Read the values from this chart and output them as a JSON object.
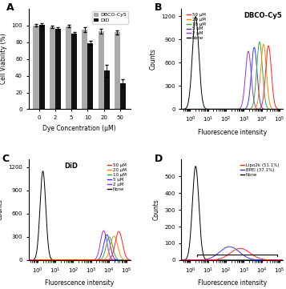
{
  "panel_A": {
    "categories": [
      0,
      2,
      5,
      10,
      20,
      50
    ],
    "DBCO_values": [
      100,
      98,
      99,
      95,
      93,
      92
    ],
    "DBCO_errors": [
      1.5,
      1.5,
      1.5,
      2.5,
      2.5,
      2.5
    ],
    "DiD_values": [
      101,
      96,
      90,
      79,
      46,
      31
    ],
    "DiD_errors": [
      1.5,
      2.0,
      2.5,
      2.5,
      7.0,
      4.5
    ],
    "xlabel": "Dye Concentration (μM)",
    "ylabel": "Cell Viability (%)",
    "ylim": [
      0,
      120
    ],
    "yticks": [
      0,
      20,
      40,
      60,
      80,
      100
    ],
    "bar_width": 0.35,
    "DBCO_color": "#aaaaaa",
    "DiD_color": "#111111"
  },
  "panel_B": {
    "title": "DBCO-Cy5",
    "xlabel": "Fluorescence intensity",
    "ylabel": "Counts",
    "ylim": [
      0,
      1300
    ],
    "yticks": [
      0,
      300,
      600,
      900,
      1200
    ],
    "xlim_log": [
      -0.5,
      5.2
    ],
    "curves": [
      {
        "label": "None",
        "color": "#000000",
        "mu_log": 0.3,
        "sigma_log": 0.18,
        "amp": 1200
      },
      {
        "label": "2 μM",
        "color": "#9933cc",
        "mu_log": 3.25,
        "sigma_log": 0.16,
        "amp": 750
      },
      {
        "label": "5 μM",
        "color": "#3333ff",
        "mu_log": 3.58,
        "sigma_log": 0.16,
        "amp": 800
      },
      {
        "label": "10 μM",
        "color": "#33aa33",
        "mu_log": 3.88,
        "sigma_log": 0.16,
        "amp": 870
      },
      {
        "label": "20 μM",
        "color": "#ff8800",
        "mu_log": 4.1,
        "sigma_log": 0.16,
        "amp": 840
      },
      {
        "label": "50 μM",
        "color": "#ff2222",
        "mu_log": 4.38,
        "sigma_log": 0.16,
        "amp": 820
      }
    ],
    "legend_order": [
      5,
      4,
      3,
      2,
      1,
      0
    ]
  },
  "panel_C": {
    "title": "DiD",
    "xlabel": "Fluorescence intensity",
    "ylabel": "Counts",
    "ylim": [
      0,
      1300
    ],
    "yticks": [
      0,
      300,
      600,
      900,
      1200
    ],
    "xlim_log": [
      -0.5,
      5.2
    ],
    "curves": [
      {
        "label": "None",
        "color": "#000000",
        "mu_log": 0.3,
        "sigma_log": 0.16,
        "amp": 1150
      },
      {
        "label": "2 μM",
        "color": "#9933cc",
        "mu_log": 3.7,
        "sigma_log": 0.18,
        "amp": 380
      },
      {
        "label": "5 μM",
        "color": "#3333ff",
        "mu_log": 3.88,
        "sigma_log": 0.18,
        "amp": 330
      },
      {
        "label": "10 μM",
        "color": "#33aa33",
        "mu_log": 4.02,
        "sigma_log": 0.18,
        "amp": 300
      },
      {
        "label": "20 μM",
        "color": "#ff8800",
        "mu_log": 4.28,
        "sigma_log": 0.2,
        "amp": 310
      },
      {
        "label": "50 μM",
        "color": "#ff2222",
        "mu_log": 4.55,
        "sigma_log": 0.2,
        "amp": 370
      }
    ],
    "legend_order": [
      5,
      4,
      3,
      2,
      1,
      0
    ]
  },
  "panel_D": {
    "xlabel": "Fluorescence intensity",
    "ylabel": "Counts",
    "ylim": [
      0,
      600
    ],
    "yticks": [
      0,
      100,
      200,
      300,
      400,
      500
    ],
    "xlim_log": [
      -0.5,
      5.2
    ],
    "curves": [
      {
        "label": "None",
        "color": "#000000",
        "mu_log": 0.3,
        "sigma_log": 0.18,
        "amp": 560
      },
      {
        "label": "BPEI (37.1%)",
        "color": "#3333ff",
        "mu_log": 2.2,
        "sigma_log": 0.55,
        "amp": 80
      },
      {
        "label": "Lipo2k (51.1%)",
        "color": "#ff2222",
        "mu_log": 2.8,
        "sigma_log": 0.55,
        "amp": 70
      }
    ],
    "legend_order": [
      2,
      1,
      0
    ],
    "bracket_y": 35,
    "bracket_x1_log": 0.4,
    "bracket_x2_log": 4.85
  }
}
